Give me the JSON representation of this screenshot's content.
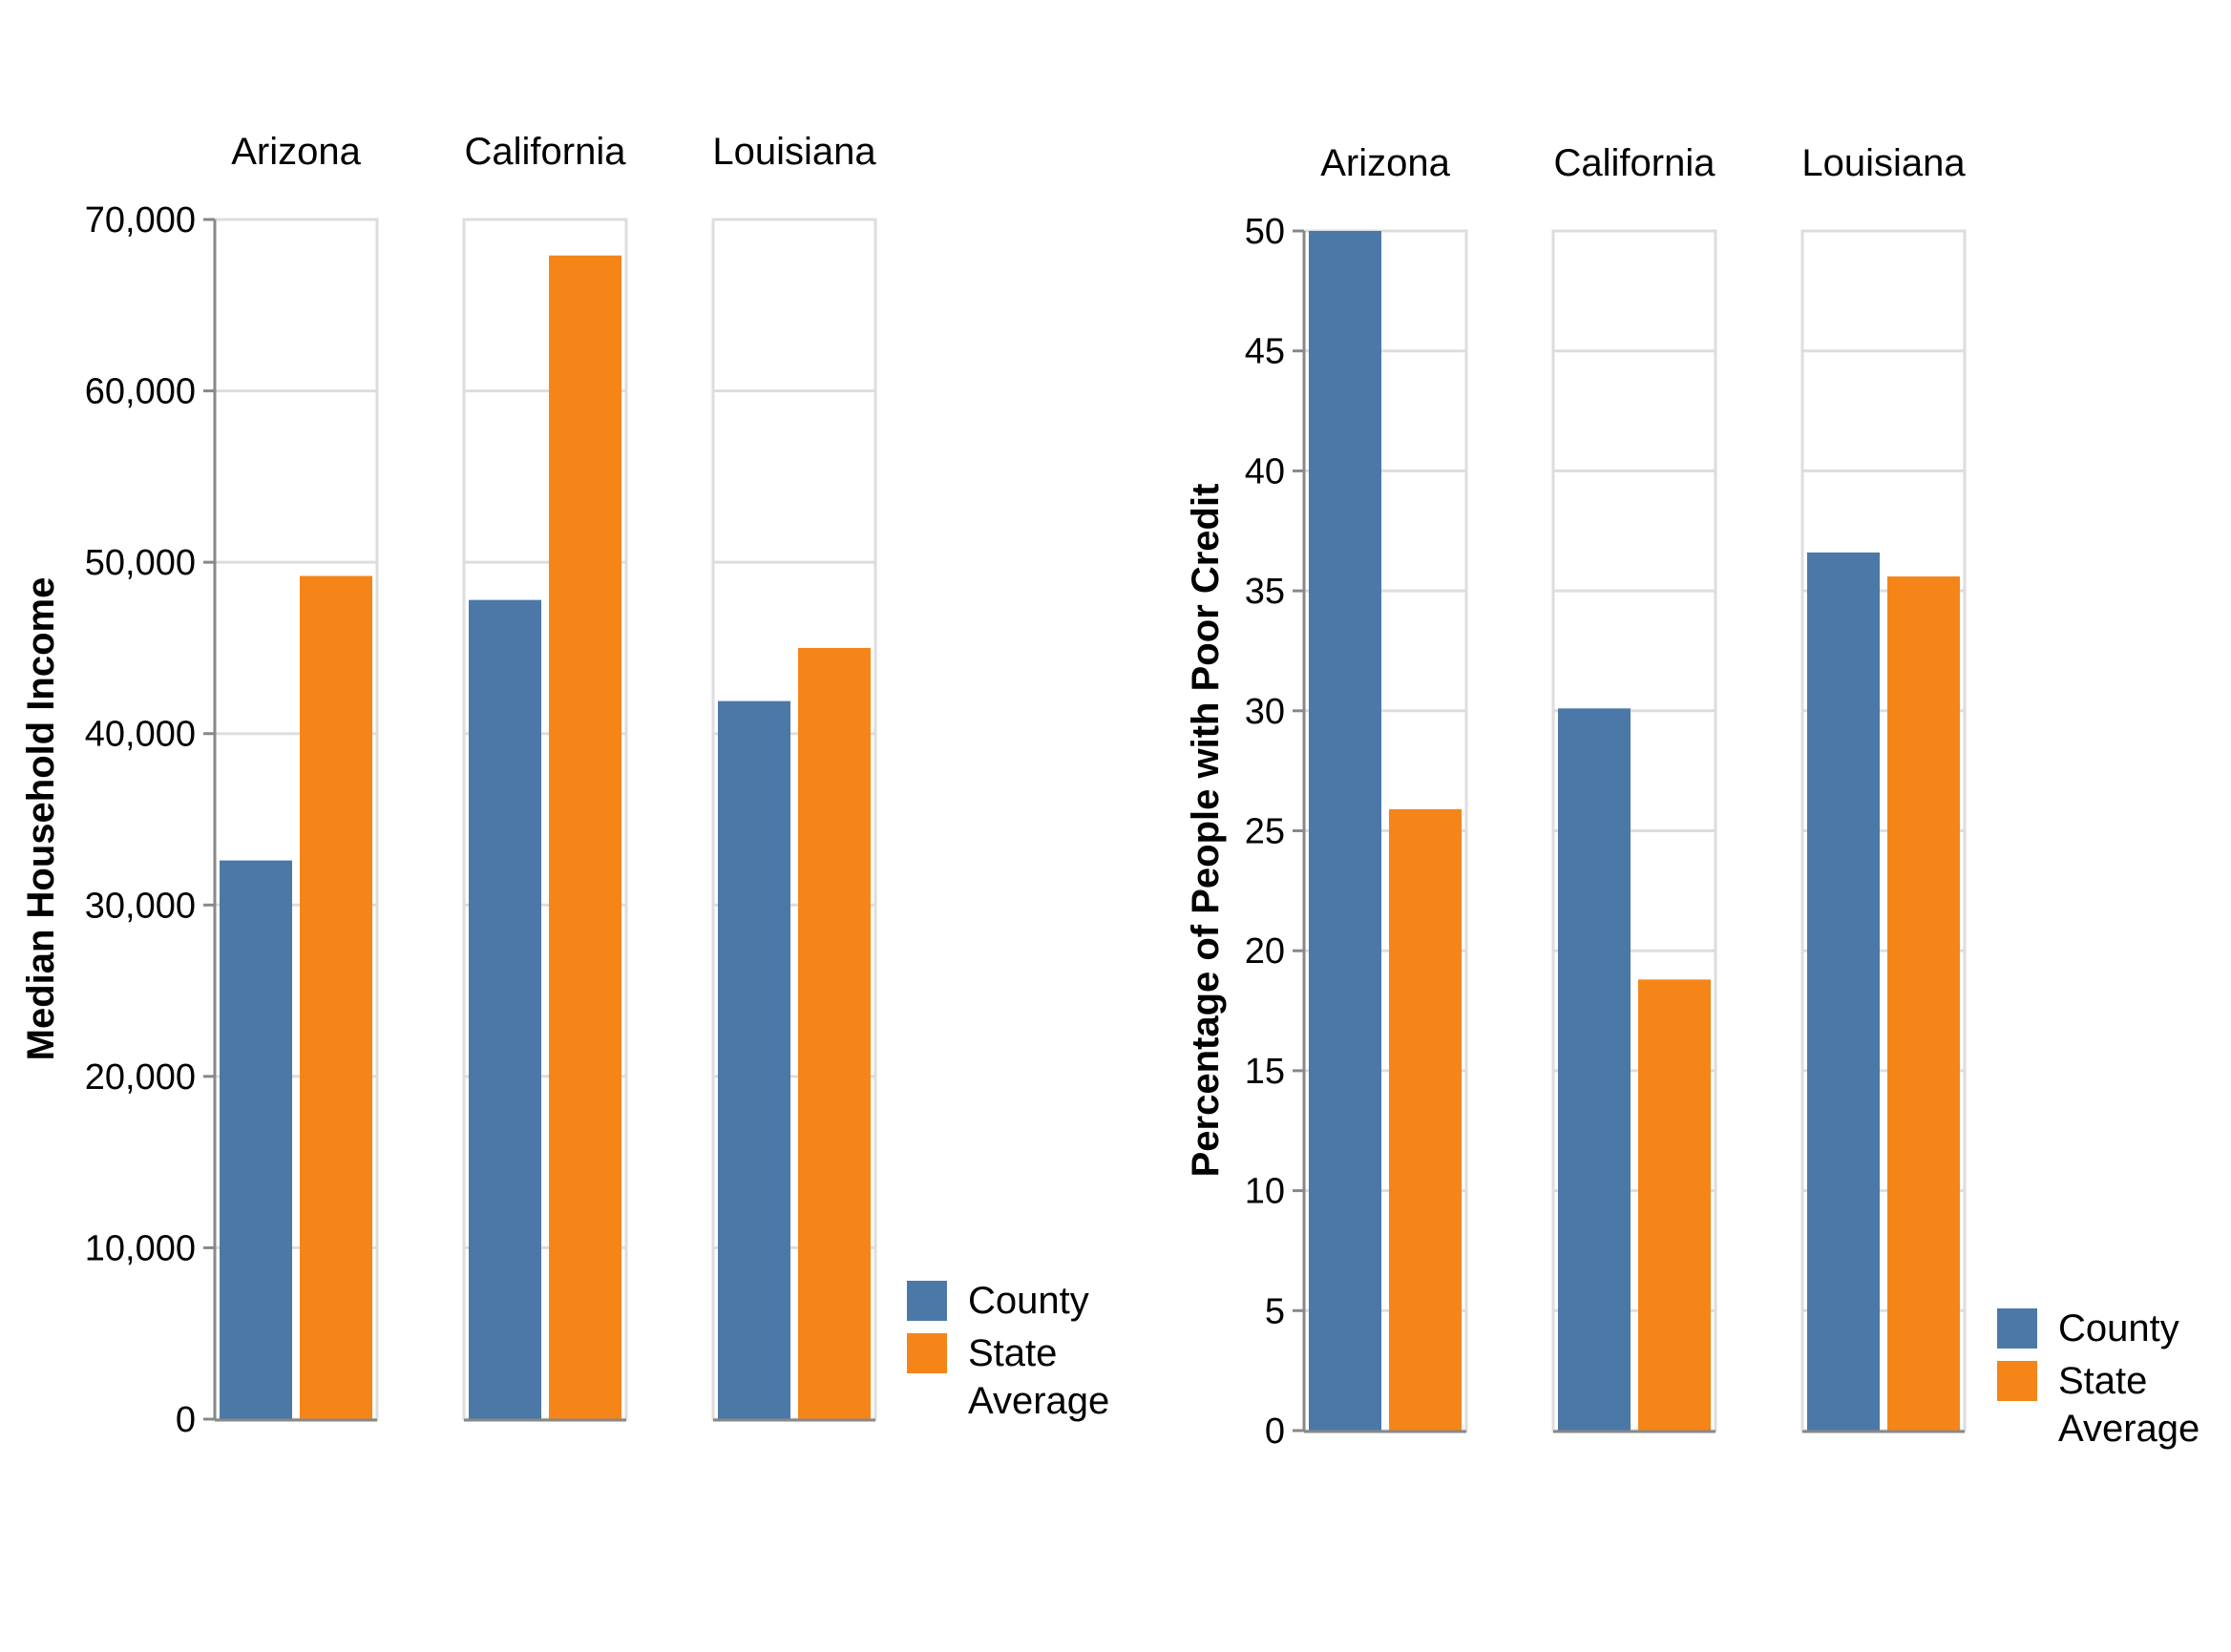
{
  "colors": {
    "county": "#4c78a8",
    "state_average": "#f58518",
    "grid": "#dddddd",
    "axis": "#888888"
  },
  "chart_data": [
    {
      "type": "bar",
      "ylabel": "Median Household Income",
      "ylim": [
        0,
        70000
      ],
      "yticks": [
        0,
        10000,
        20000,
        30000,
        40000,
        50000,
        60000,
        70000
      ],
      "ytick_labels": [
        "0",
        "10,000",
        "20,000",
        "30,000",
        "40,000",
        "50,000",
        "60,000",
        "70,000"
      ],
      "facets": [
        "Arizona",
        "California",
        "Louisiana"
      ],
      "series": [
        {
          "name": "County",
          "values": [
            32600,
            47800,
            41900
          ]
        },
        {
          "name": "State Average",
          "values": [
            49200,
            67900,
            45000
          ]
        }
      ],
      "legend": {
        "placement": "bottom-right",
        "items": [
          "County",
          "State",
          "Average"
        ]
      },
      "grid": true
    },
    {
      "type": "bar",
      "ylabel": "Percentage of People with Poor Credit",
      "ylim": [
        0,
        50
      ],
      "yticks": [
        0,
        5,
        10,
        15,
        20,
        25,
        30,
        35,
        40,
        45,
        50
      ],
      "ytick_labels": [
        "0",
        "5",
        "10",
        "15",
        "20",
        "25",
        "30",
        "35",
        "40",
        "45",
        "50"
      ],
      "facets": [
        "Arizona",
        "California",
        "Louisiana"
      ],
      "series": [
        {
          "name": "County",
          "values": [
            50,
            30.1,
            36.6
          ]
        },
        {
          "name": "State Average",
          "values": [
            25.9,
            18.8,
            35.6
          ]
        }
      ],
      "legend": {
        "placement": "bottom-right",
        "items": [
          "County",
          "State",
          "Average"
        ]
      },
      "grid": true
    }
  ]
}
